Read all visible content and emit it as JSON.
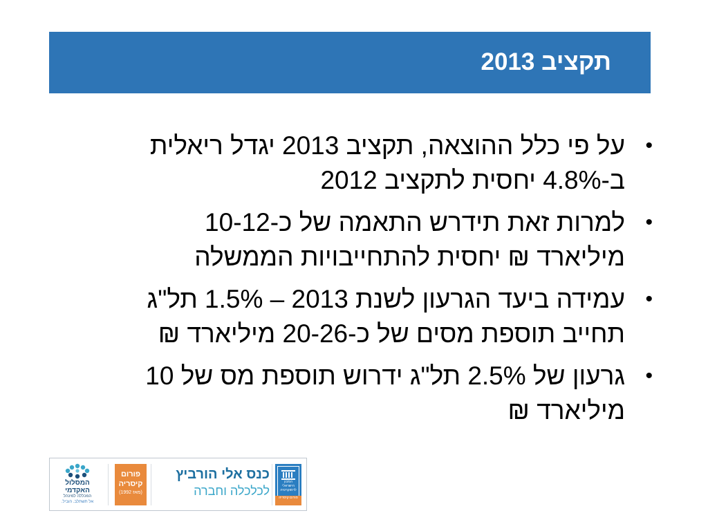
{
  "slide": {
    "title": "תקציב 2013",
    "bullets": [
      {
        "lines": [
          "על פי כלל ההוצאה, תקציב 2013 יגדל ריאלית",
          "ב-4.8% יחסית לתקציב 2012"
        ]
      },
      {
        "lines": [
          "למרות זאת תידרש התאמה של כ-10-12",
          "מיליארד ₪ יחסית להתחייבויות הממשלה"
        ]
      },
      {
        "lines": [
          "עמידה ביעד הגרעון לשנת 2013 – 1.5% תל\"ג",
          "תחייב תוספת מסים של כ-20-26 מיליארד ₪"
        ]
      },
      {
        "lines": [
          "גרעון של 2.5% תל\"ג ידרוש תוספת מס של 10",
          "מיליארד ₪"
        ]
      }
    ],
    "bullet_symbol": "•"
  },
  "footer_logos": {
    "academic": {
      "name": "המסלול האקדמי",
      "sub": "המכללה למינהל",
      "tagline": "אל תשתלב. הוביל."
    },
    "forum": {
      "line1": "פורום",
      "line2": "קיסריה",
      "since": "(מאז 1992)"
    },
    "conference": {
      "name": "כנס אלי הורביץ",
      "subtitle": "לכלכלה וחברה"
    },
    "idi": {
      "name": "המכון הישראלי לדמוקרטיה",
      "bottom": "פורום קיסריה"
    }
  },
  "colors": {
    "title_bar": "#2e75b6",
    "forum_orange": "#e98a3c",
    "conference_blue": "#1d6fa0",
    "conference_light": "#3aa6c9",
    "idi_blue": "#2b7ec1",
    "academic_dots": "#3aa6c9"
  }
}
